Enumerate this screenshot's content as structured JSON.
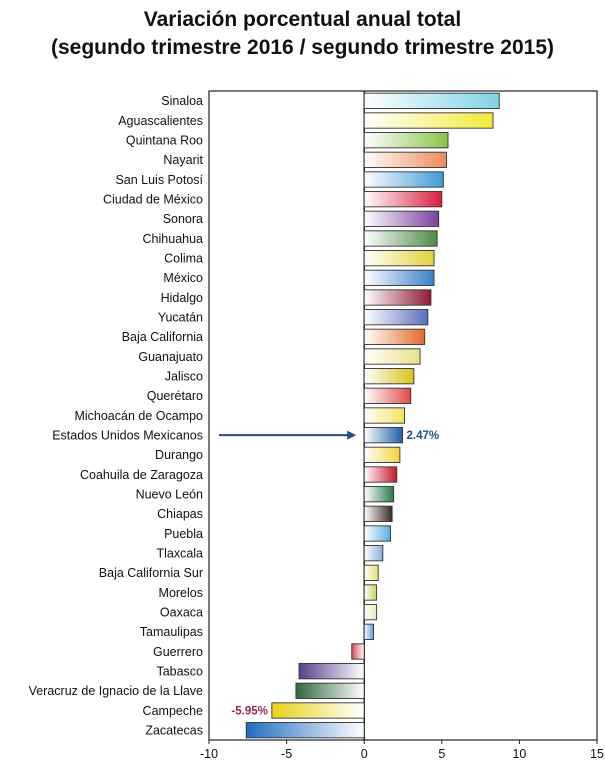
{
  "title_line1": "Variación porcentual anual total",
  "title_line2": "(segundo trimestre 2016 / segundo trimestre 2015)",
  "chart_data": {
    "type": "bar",
    "orientation": "horizontal",
    "title": "Variación porcentual anual total (segundo trimestre 2016 / segundo trimestre 2015)",
    "categories": [
      "Sinaloa",
      "Aguascalientes",
      "Quintana Roo",
      "Nayarit",
      "San Luis Potosí",
      "Ciudad de México",
      "Sonora",
      "Chihuahua",
      "Colima",
      "México",
      "Hidalgo",
      "Yucatán",
      "Baja California",
      "Guanajuato",
      "Jalisco",
      "Querétaro",
      "Michoacán de Ocampo",
      "Estados Unidos Mexicanos",
      "Durango",
      "Coahuila de Zaragoza",
      "Nuevo León",
      "Chiapas",
      "Puebla",
      "Tlaxcala",
      "Baja California Sur",
      "Morelos",
      "Oaxaca",
      "Tamaulipas",
      "Guerrero",
      "Tabasco",
      "Veracruz de Ignacio de la Llave",
      "Campeche",
      "Zacatecas"
    ],
    "values": [
      8.7,
      8.3,
      5.4,
      5.3,
      5.1,
      5.0,
      4.8,
      4.7,
      4.5,
      4.5,
      4.3,
      4.1,
      3.9,
      3.6,
      3.2,
      3.0,
      2.6,
      2.47,
      2.3,
      2.1,
      1.9,
      1.8,
      1.7,
      1.2,
      0.9,
      0.8,
      0.8,
      0.6,
      -0.8,
      -4.2,
      -4.4,
      -5.95,
      -7.6
    ],
    "colors": [
      "#7fd3e6",
      "#f2ea3a",
      "#8ac34a",
      "#f08a5a",
      "#3f9ad6",
      "#d8203c",
      "#7a3fa0",
      "#4f8a4a",
      "#e0d23a",
      "#3a7fc8",
      "#8e1b32",
      "#5a6fc0",
      "#e06b2a",
      "#e8e08a",
      "#d8c21a",
      "#e04a4a",
      "#f0e25a",
      "#1f5fa8",
      "#f2d23a",
      "#c8182a",
      "#2a7a4a",
      "#3a2a2a",
      "#5aaedc",
      "#8aaed8",
      "#e8e06a",
      "#c8d25a",
      "#e8e8b8",
      "#5a9ad8",
      "#d8485a",
      "#5a3f8a",
      "#2f6a3a",
      "#e8d21a",
      "#1f6fc0"
    ],
    "xlim": [
      -10,
      15
    ],
    "xticks": [
      "-10",
      "-5",
      "0",
      "5",
      "10",
      "15"
    ],
    "highlight_category": "Estados Unidos Mexicanos",
    "annotations": [
      {
        "category": "Estados Unidos Mexicanos",
        "text": "2.47%",
        "color": "#1f4f8a"
      },
      {
        "category": "Campeche",
        "text": "-5.95%",
        "color": "#9a2a4a"
      }
    ],
    "grid": false
  }
}
